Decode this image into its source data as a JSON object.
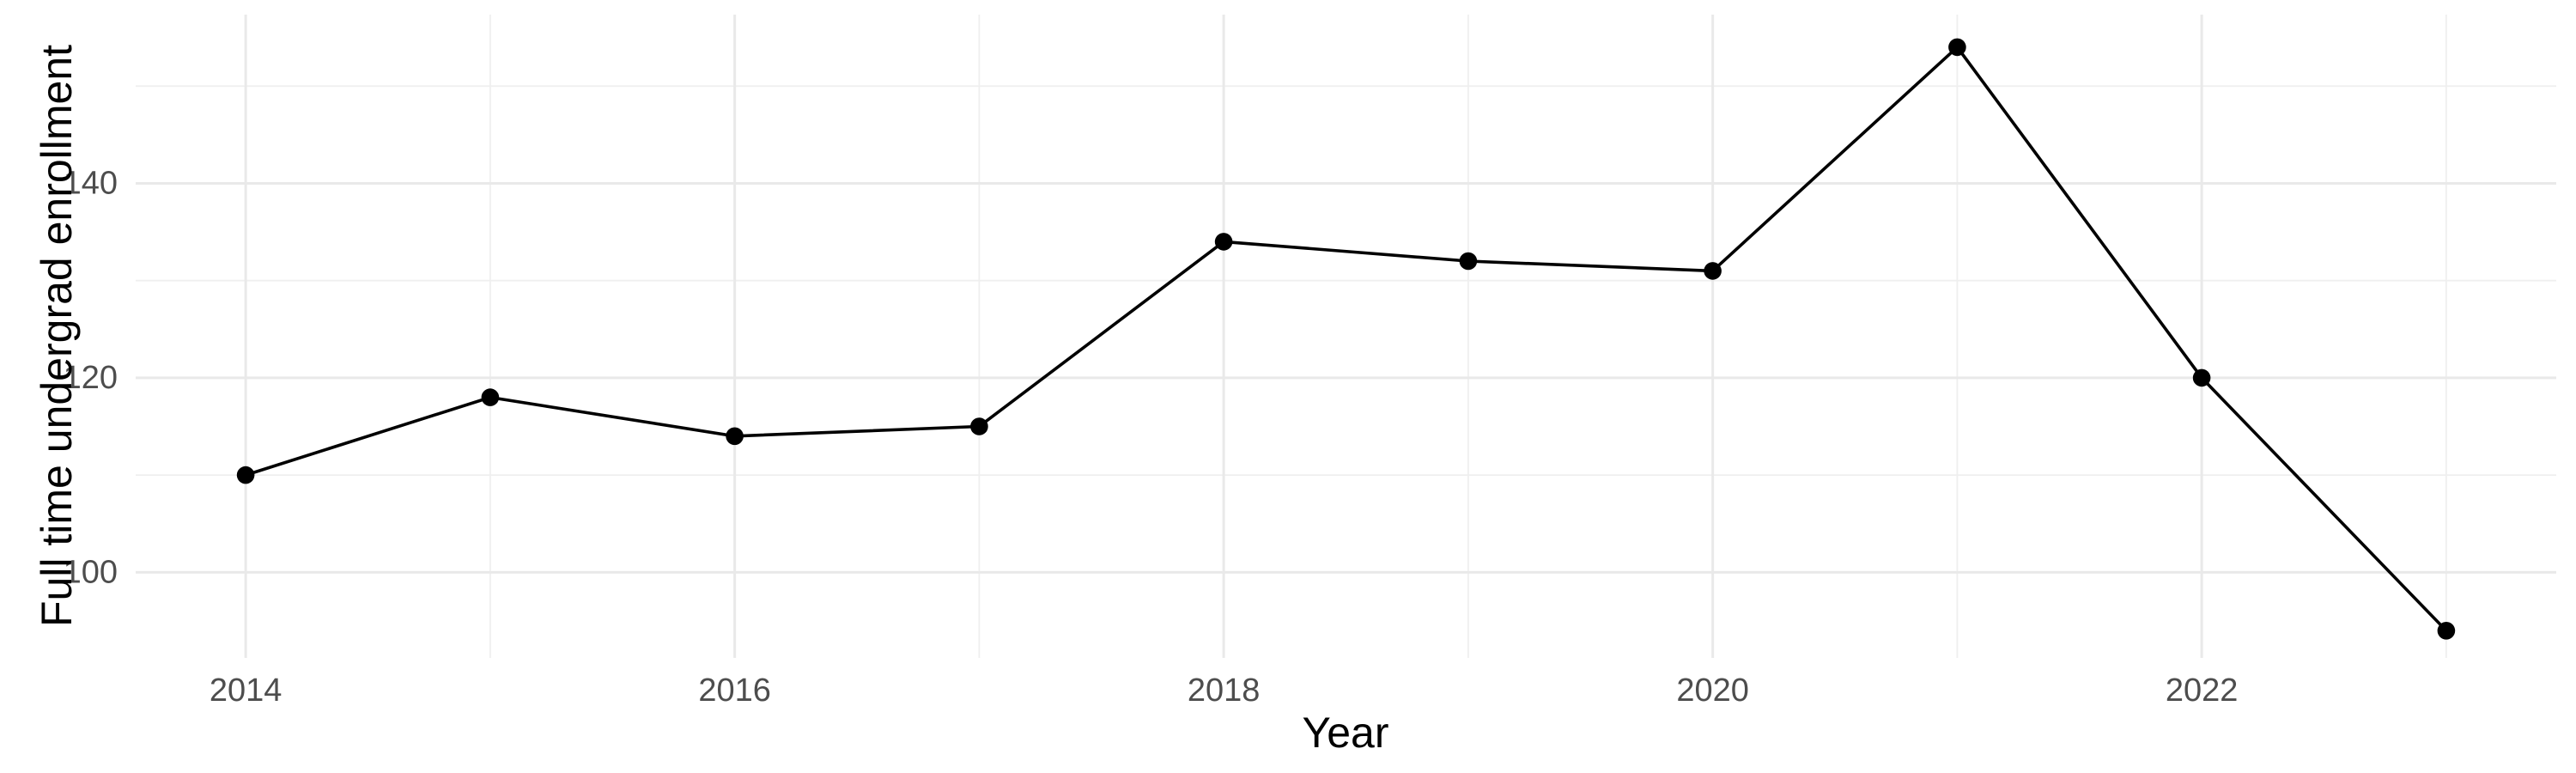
{
  "chart_data": {
    "type": "line",
    "title": "",
    "xlabel": "Year",
    "ylabel": "Full time undergrad enrollment",
    "x": [
      2014,
      2015,
      2016,
      2017,
      2018,
      2019,
      2020,
      2021,
      2022,
      2023
    ],
    "series": [
      {
        "name": "Full time undergrad enrollment",
        "values": [
          110,
          118,
          114,
          115,
          134,
          132,
          131,
          154,
          120,
          94
        ]
      }
    ],
    "xlim": [
      2013.55,
      2023.45
    ],
    "ylim": [
      91.2,
      157.35
    ],
    "x_ticks": {
      "major": [
        2014,
        2016,
        2018,
        2020,
        2022
      ],
      "minor": [
        2015,
        2017,
        2019,
        2021,
        2023
      ],
      "major_labels": [
        "2014",
        "2016",
        "2018",
        "2020",
        "2022"
      ]
    },
    "y_ticks": {
      "major": [
        100,
        120,
        140
      ],
      "minor": [
        110,
        130,
        150
      ],
      "major_labels": [
        "100",
        "120",
        "140"
      ]
    },
    "grid": "on",
    "legend": "none",
    "style": {
      "background": "#FFFFFF",
      "grid_major_color": "#E9E9E9",
      "grid_minor_color": "#EFEFEF",
      "line_color": "#000000",
      "point_color": "#000000",
      "tick_label_color": "#4D4D4D",
      "axis_title_color": "#000000"
    }
  }
}
